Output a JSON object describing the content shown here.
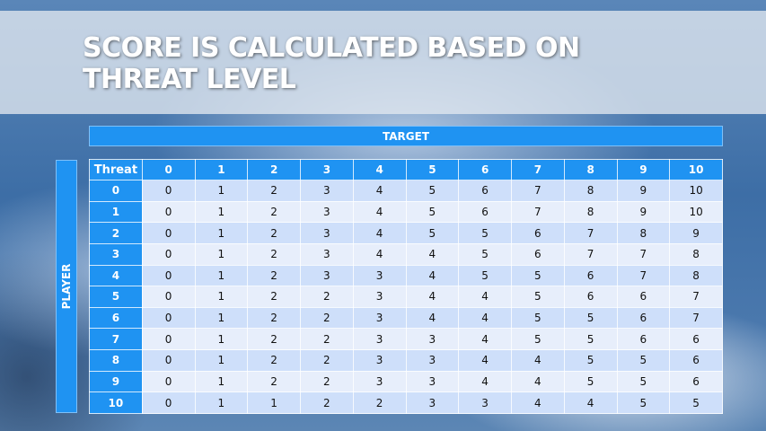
{
  "title": "SCORE IS CALCULATED BASED ON THREAT LEVEL",
  "target_label": "TARGET",
  "player_label": "PLAYER",
  "colors": {
    "header": "#1f93f2",
    "row_dark": "#cedffa",
    "row_light": "#e7eefb"
  },
  "table": {
    "corner": "Threat",
    "columns": [
      "0",
      "1",
      "2",
      "3",
      "4",
      "5",
      "6",
      "7",
      "8",
      "9",
      "10"
    ],
    "rows": [
      {
        "label": "0",
        "values": [
          "0",
          "1",
          "2",
          "3",
          "4",
          "5",
          "6",
          "7",
          "8",
          "9",
          "10"
        ]
      },
      {
        "label": "1",
        "values": [
          "0",
          "1",
          "2",
          "3",
          "4",
          "5",
          "6",
          "7",
          "8",
          "9",
          "10"
        ]
      },
      {
        "label": "2",
        "values": [
          "0",
          "1",
          "2",
          "3",
          "4",
          "5",
          "5",
          "6",
          "7",
          "8",
          "9"
        ]
      },
      {
        "label": "3",
        "values": [
          "0",
          "1",
          "2",
          "3",
          "4",
          "4",
          "5",
          "6",
          "7",
          "7",
          "8"
        ]
      },
      {
        "label": "4",
        "values": [
          "0",
          "1",
          "2",
          "3",
          "3",
          "4",
          "5",
          "5",
          "6",
          "7",
          "8"
        ]
      },
      {
        "label": "5",
        "values": [
          "0",
          "1",
          "2",
          "2",
          "3",
          "4",
          "4",
          "5",
          "6",
          "6",
          "7"
        ]
      },
      {
        "label": "6",
        "values": [
          "0",
          "1",
          "2",
          "2",
          "3",
          "4",
          "4",
          "5",
          "5",
          "6",
          "7"
        ]
      },
      {
        "label": "7",
        "values": [
          "0",
          "1",
          "2",
          "2",
          "3",
          "3",
          "4",
          "5",
          "5",
          "6",
          "6"
        ]
      },
      {
        "label": "8",
        "values": [
          "0",
          "1",
          "2",
          "2",
          "3",
          "3",
          "4",
          "4",
          "5",
          "5",
          "6"
        ]
      },
      {
        "label": "9",
        "values": [
          "0",
          "1",
          "2",
          "2",
          "3",
          "3",
          "4",
          "4",
          "5",
          "5",
          "6"
        ]
      },
      {
        "label": "10",
        "values": [
          "0",
          "1",
          "1",
          "2",
          "2",
          "3",
          "3",
          "4",
          "4",
          "5",
          "5"
        ]
      }
    ]
  }
}
